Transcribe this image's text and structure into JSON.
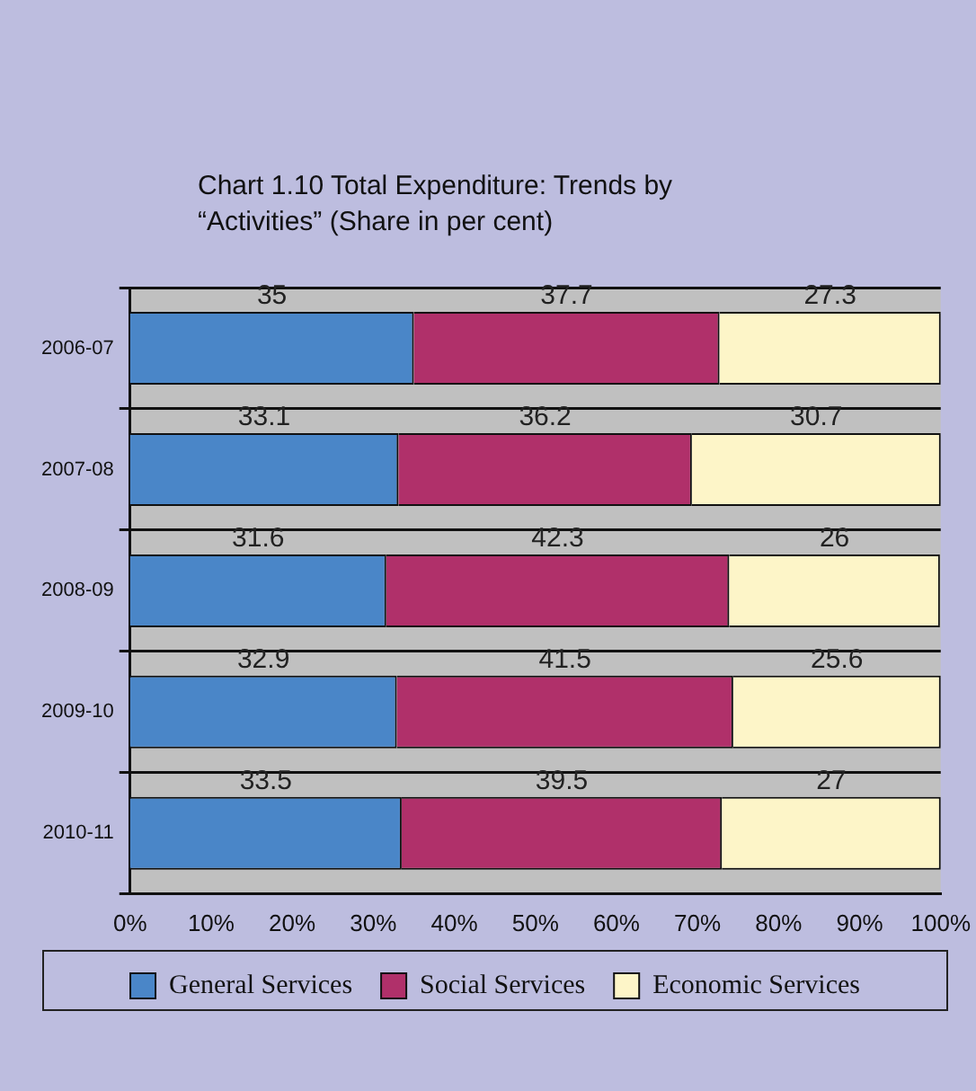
{
  "chart_data": {
    "type": "bar",
    "orientation": "horizontal",
    "stacked": true,
    "title": "Chart 1.10 Total Expenditure: Trends by “Activities” (Share in per cent)",
    "categories": [
      "2006-07",
      "2007-08",
      "2008-09",
      "2009-10",
      "2010-11"
    ],
    "series": [
      {
        "name": "General Services",
        "color": "#4a86c8",
        "values": [
          35,
          33.1,
          31.6,
          32.9,
          33.5
        ]
      },
      {
        "name": "Social Services",
        "color": "#b0306a",
        "values": [
          37.7,
          36.2,
          42.3,
          41.5,
          39.5
        ]
      },
      {
        "name": "Economic Services",
        "color": "#fdf5c8",
        "values": [
          27.3,
          30.7,
          26,
          25.6,
          27
        ]
      }
    ],
    "xlim": [
      0,
      100
    ],
    "xticks": [
      {
        "value": 0,
        "label": "0%"
      },
      {
        "value": 10,
        "label": "10%"
      },
      {
        "value": 20,
        "label": "20%"
      },
      {
        "value": 30,
        "label": "30%"
      },
      {
        "value": 40,
        "label": "40%"
      },
      {
        "value": 50,
        "label": "50%"
      },
      {
        "value": 60,
        "label": "60%"
      },
      {
        "value": 70,
        "label": "70%"
      },
      {
        "value": 80,
        "label": "80%"
      },
      {
        "value": 90,
        "label": "90%"
      },
      {
        "value": 100,
        "label": "100%"
      }
    ],
    "grid": "y",
    "legend": "bottom",
    "data_labels": true
  }
}
